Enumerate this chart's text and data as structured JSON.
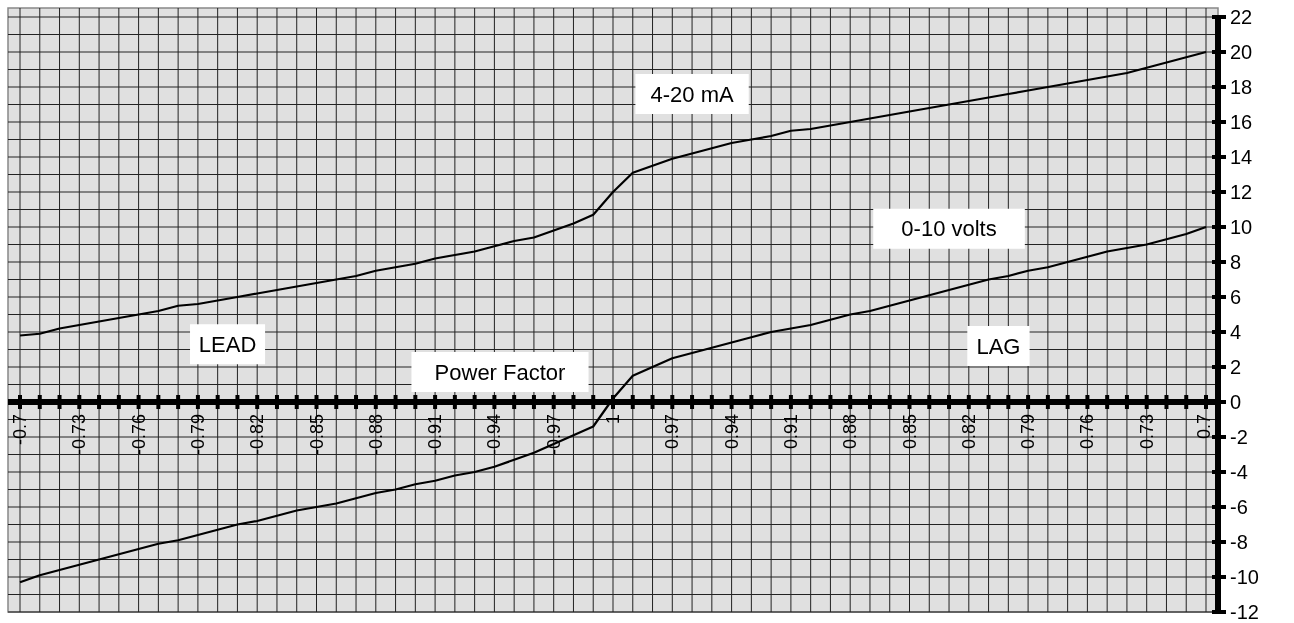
{
  "chart_data": {
    "type": "line",
    "xlabel": "Power Factor",
    "categories": [
      "-0.7",
      null,
      null,
      "-0.73",
      null,
      null,
      "-0.76",
      null,
      null,
      "-0.79",
      null,
      null,
      "-0.82",
      null,
      null,
      "-0.85",
      null,
      null,
      "-0.88",
      null,
      null,
      "-0.91",
      null,
      null,
      "-0.94",
      null,
      null,
      "-0.97",
      null,
      null,
      "1",
      null,
      null,
      "0.97",
      null,
      null,
      "0.94",
      null,
      null,
      "0.91",
      null,
      null,
      "0.88",
      null,
      null,
      "0.85",
      null,
      null,
      "0.82",
      null,
      null,
      "0.79",
      null,
      null,
      "0.76",
      null,
      null,
      "0.73",
      null,
      null,
      "0.7"
    ],
    "series": [
      {
        "name": "4-20 mA",
        "color": "#000000",
        "values": [
          3.8,
          3.9,
          4.2,
          4.4,
          4.6,
          4.8,
          5.0,
          5.2,
          5.5,
          5.6,
          5.8,
          6.0,
          6.2,
          6.4,
          6.6,
          6.8,
          7.0,
          7.2,
          7.5,
          7.7,
          7.9,
          8.2,
          8.4,
          8.6,
          8.9,
          9.2,
          9.4,
          9.8,
          10.2,
          10.7,
          12.0,
          13.1,
          13.5,
          13.9,
          14.2,
          14.5,
          14.8,
          15.0,
          15.2,
          15.5,
          15.6,
          15.8,
          16.0,
          16.2,
          16.4,
          16.6,
          16.8,
          17.0,
          17.2,
          17.4,
          17.6,
          17.8,
          18.0,
          18.2,
          18.4,
          18.6,
          18.8,
          19.1,
          19.4,
          19.7,
          20.0
        ]
      },
      {
        "name": "0-10 volts",
        "color": "#000000",
        "values": [
          -10.3,
          -9.9,
          -9.6,
          -9.3,
          -9.0,
          -8.7,
          -8.4,
          -8.1,
          -7.9,
          -7.6,
          -7.3,
          -7.0,
          -6.8,
          -6.5,
          -6.2,
          -6.0,
          -5.8,
          -5.5,
          -5.2,
          -5.0,
          -4.7,
          -4.5,
          -4.2,
          -4.0,
          -3.7,
          -3.3,
          -2.9,
          -2.4,
          -1.9,
          -1.4,
          0.2,
          1.5,
          2.0,
          2.5,
          2.8,
          3.1,
          3.4,
          3.7,
          4.0,
          4.2,
          4.4,
          4.7,
          5.0,
          5.2,
          5.5,
          5.8,
          6.1,
          6.4,
          6.7,
          7.0,
          7.2,
          7.5,
          7.7,
          8.0,
          8.3,
          8.6,
          8.8,
          9.0,
          9.3,
          9.6,
          10.0
        ]
      }
    ],
    "annotations": [
      "LEAD",
      "LAG"
    ],
    "ylim": [
      -12,
      22
    ],
    "yticks": [
      -12,
      {
        "value": -11,
        "label": null
      },
      -10,
      {
        "value": -9,
        "label": null
      },
      -8,
      {
        "value": -7,
        "label": null
      },
      -6,
      {
        "value": -5,
        "label": null
      },
      -4,
      {
        "value": -3,
        "label": null
      },
      -2,
      {
        "value": -1,
        "label": null
      },
      0,
      {
        "value": 1,
        "label": null
      },
      2,
      {
        "value": 3,
        "label": null
      },
      4,
      {
        "value": 5,
        "label": null
      },
      6,
      {
        "value": 7,
        "label": null
      },
      8,
      {
        "value": 9,
        "label": null
      },
      10,
      {
        "value": 11,
        "label": null
      },
      12,
      {
        "value": 13,
        "label": null
      },
      14,
      {
        "value": 15,
        "label": null
      },
      16,
      {
        "value": 17,
        "label": null
      },
      18,
      {
        "value": 19,
        "label": null
      },
      20,
      {
        "value": 21,
        "label": null
      },
      22
    ],
    "grid": true,
    "line_style": "solid",
    "marker": "none",
    "legend": false
  }
}
